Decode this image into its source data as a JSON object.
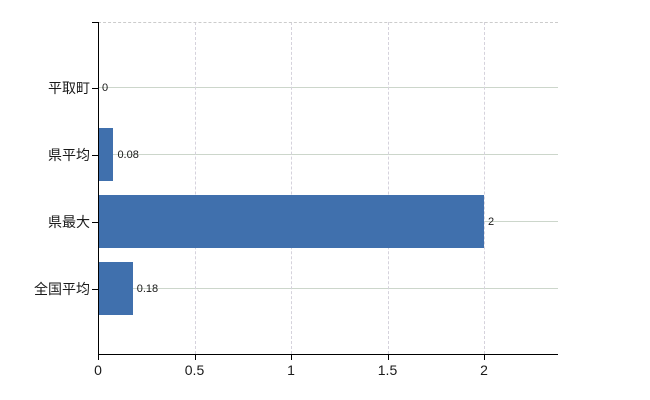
{
  "chart_style": {
    "background": "#ffffff",
    "bar_color": "#4070ad",
    "axis_color": "#000000",
    "text_color": "#1a1a1a",
    "h_grid_color": "#ccd6cb",
    "v_grid_color": "#d5d2dc",
    "top_border_color": "#cccccc"
  },
  "chart_data": {
    "type": "bar",
    "orientation": "horizontal",
    "title": "",
    "xlabel": "",
    "ylabel": "",
    "categories": [
      "平取町",
      "県平均",
      "県最大",
      "全国平均"
    ],
    "values": [
      0,
      0.08,
      2,
      0.18
    ],
    "value_labels": [
      "0",
      "0.08",
      "2",
      "0.18"
    ],
    "x_ticks": [
      0,
      0.5,
      1,
      1.5,
      2
    ],
    "x_tick_labels": [
      "0",
      "0.5",
      "1",
      "1.5",
      "2"
    ],
    "xlim": [
      0,
      2.38
    ],
    "grid": true,
    "legend": false,
    "bar_value_labels_visible": true
  }
}
